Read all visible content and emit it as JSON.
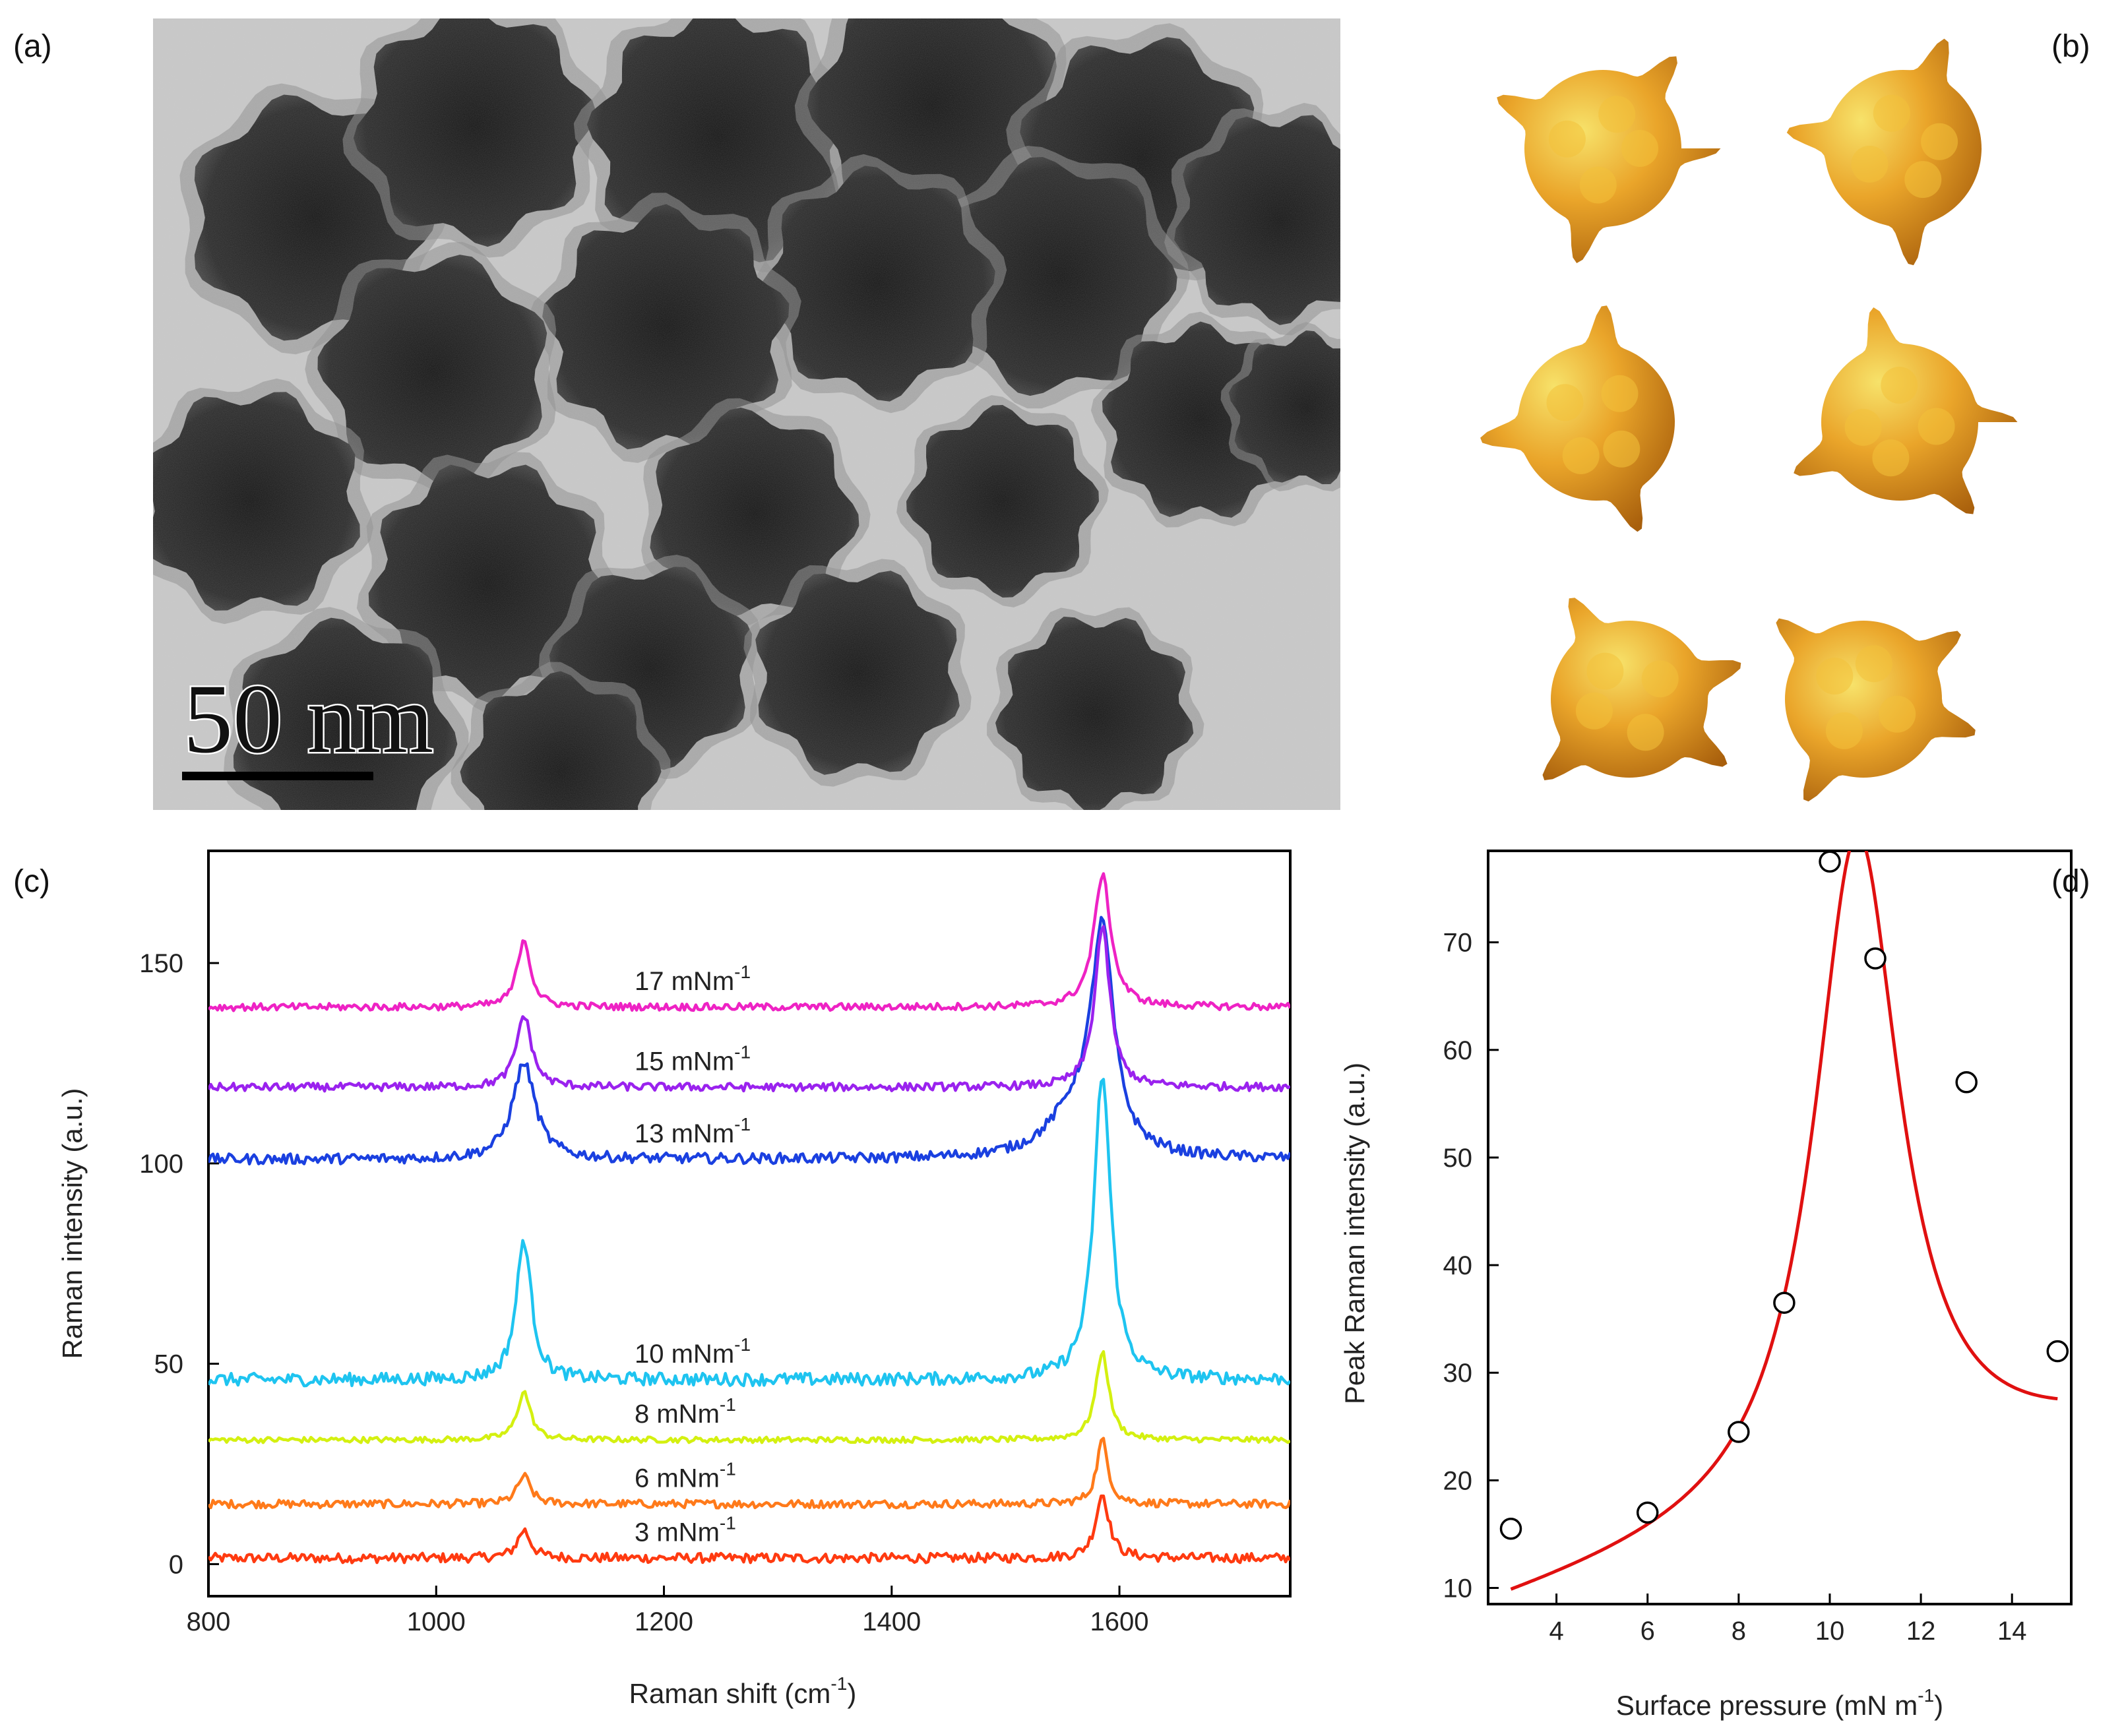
{
  "panels": {
    "a": {
      "label": "(a)",
      "scale_bar_text": "50 nm"
    },
    "b": {
      "label": "(b)"
    },
    "c": {
      "label": "(c)"
    },
    "d": {
      "label": "(d)"
    }
  },
  "colors": {
    "axis": "#000000",
    "fit_line": "#e01010",
    "gold_light": "#f5d84a",
    "gold_mid": "#e8a020",
    "gold_dark": "#b06a10",
    "tem_background": "#c9c9c9",
    "tem_particle": "#262626"
  },
  "chart_data": [
    {
      "id": "c",
      "type": "line",
      "xlabel": "Raman shift (cm",
      "xlabel_sup": "-1",
      "xlabel_suffix": ")",
      "ylabel": "Raman intensity (a.u.)",
      "xlim": [
        800,
        1750
      ],
      "ylim": [
        -8,
        178
      ],
      "xticks": [
        800,
        1000,
        1200,
        1400,
        1600
      ],
      "yticks": [
        0,
        50,
        100,
        150
      ],
      "series": [
        {
          "name": "3 mNm",
          "sup": "-1",
          "color": "#ff3a10",
          "baseline": 1.5,
          "peaks": [
            [
              1077,
              7,
              7
            ],
            [
              1585,
              16,
              7
            ]
          ],
          "noise": 1.2
        },
        {
          "name": "6 mNm",
          "sup": "-1",
          "color": "#ff7a1a",
          "baseline": 15,
          "peaks": [
            [
              1077,
              7,
              7
            ],
            [
              1585,
              16,
              6
            ]
          ],
          "noise": 1.0
        },
        {
          "name": "8 mNm",
          "sup": "-1",
          "color": "#d4f010",
          "baseline": 31,
          "peaks": [
            [
              1077,
              12,
              7
            ],
            [
              1585,
              22,
              7
            ]
          ],
          "noise": 0.7
        },
        {
          "name": "10 mNm",
          "sup": "-1",
          "color": "#1ec4f0",
          "baseline": 46,
          "peaks": [
            [
              1077,
              35,
              8
            ],
            [
              1585,
              76,
              9
            ]
          ],
          "noise": 1.6
        },
        {
          "name": "13 mNm",
          "sup": "-1",
          "color": "#1a40e0",
          "baseline": 101,
          "peaks": [
            [
              1077,
              24,
              12
            ],
            [
              1585,
              54,
              12
            ],
            [
              1560,
              10,
              28
            ]
          ],
          "noise": 1.3
        },
        {
          "name": "15 mNm",
          "sup": "-1",
          "color": "#9a22ee",
          "baseline": 119,
          "peaks": [
            [
              1077,
              18,
              8
            ],
            [
              1585,
              40,
              8
            ]
          ],
          "noise": 1.0
        },
        {
          "name": "17 mNm",
          "sup": "-1",
          "color": "#ee22c4",
          "baseline": 139,
          "peaks": [
            [
              1077,
              17,
              7
            ],
            [
              1585,
              33,
              9
            ]
          ],
          "noise": 0.9
        }
      ]
    },
    {
      "id": "d",
      "type": "scatter",
      "xlabel": "Surface pressure (mN m",
      "xlabel_sup": "-1",
      "xlabel_suffix": ")",
      "ylabel": "Peak Raman intensity (a.u.)",
      "xlim": [
        2.5,
        15.3
      ],
      "ylim": [
        8.5,
        78.5
      ],
      "xticks": [
        4,
        6,
        8,
        10,
        12,
        14
      ],
      "yticks": [
        10,
        20,
        30,
        40,
        50,
        60,
        70
      ],
      "points": {
        "x": [
          3,
          6,
          8,
          9,
          10,
          11,
          13,
          15
        ],
        "y": [
          15.5,
          17,
          24.5,
          36.5,
          77.5,
          68.5,
          57,
          32
        ]
      },
      "fit": {
        "x0": 10.6,
        "gamma": 1.15,
        "amplitude": 62,
        "offset": 8.5,
        "slope": 1.05,
        "x_range": [
          3,
          15
        ]
      }
    }
  ]
}
